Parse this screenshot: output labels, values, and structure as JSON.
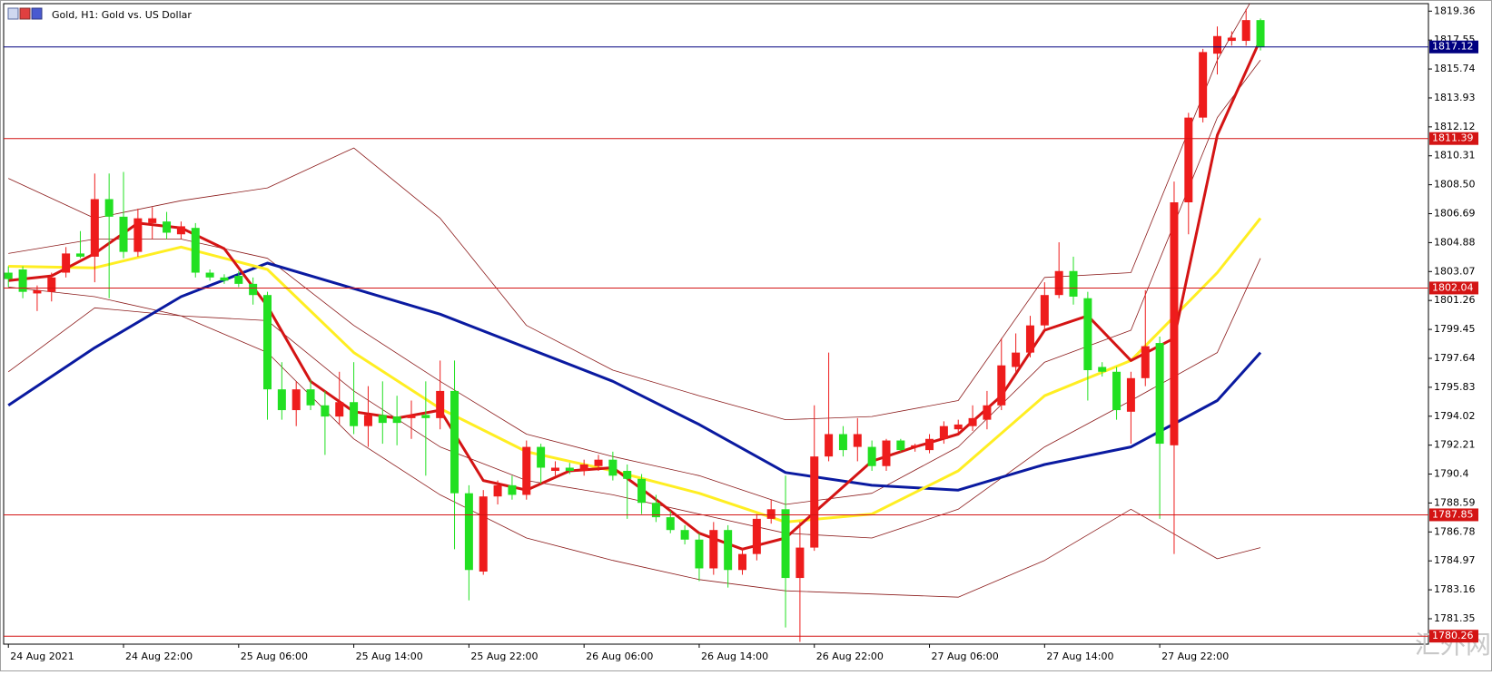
{
  "chart_data": {
    "type": "candlestick",
    "title": "Gold, H1:  Gold vs. US Dollar",
    "categories": [
      "24 Aug 2021",
      null,
      null,
      null,
      null,
      null,
      null,
      null,
      "24 Aug 22:00",
      null,
      null,
      null,
      null,
      null,
      null,
      null,
      "25 Aug 06:00",
      null,
      null,
      null,
      null,
      null,
      null,
      null,
      "25 Aug 14:00",
      null,
      null,
      null,
      null,
      null,
      null,
      null,
      "25 Aug 22:00",
      null,
      null,
      null,
      null,
      null,
      null,
      null,
      "26 Aug 06:00",
      null,
      null,
      null,
      null,
      null,
      null,
      null,
      "26 Aug 14:00",
      null,
      null,
      null,
      null,
      null,
      null,
      null,
      "26 Aug 22:00",
      null,
      null,
      null,
      null,
      null,
      null,
      null,
      "27 Aug 06:00",
      null,
      null,
      null,
      null,
      null,
      null,
      null,
      "27 Aug 14:00",
      null,
      null,
      null,
      null,
      null,
      null,
      null,
      "27 Aug 22:00",
      null,
      null,
      null,
      null,
      null,
      null,
      null
    ],
    "open": [
      1803.0,
      1803.2,
      1801.7,
      1801.8,
      1803.0,
      1804.2,
      1804.0,
      1807.6,
      1806.5,
      1804.3,
      1806.1,
      1806.2,
      1805.4,
      1805.8,
      1803.0,
      1802.7,
      1802.8,
      1802.3,
      1801.6,
      1795.7,
      1794.4,
      1795.7,
      1794.7,
      1794.0,
      1794.9,
      1793.4,
      1794.1,
      1794.0,
      1793.9,
      1794.1,
      1793.9,
      1795.6,
      1789.2,
      1784.3,
      1789.0,
      1789.7,
      1789.1,
      1792.1,
      1790.6,
      1790.8,
      1790.6,
      1790.9,
      1791.3,
      1790.6,
      1790.1,
      1788.6,
      1787.7,
      1786.9,
      1786.3,
      1784.5,
      1786.9,
      1784.4,
      1785.4,
      1787.6,
      1788.2,
      1783.9,
      1785.8,
      1791.5,
      1792.9,
      1792.1,
      1792.1,
      1790.9,
      1792.5,
      1792.1,
      1791.9,
      1792.6,
      1793.2,
      1793.4,
      1793.8,
      1794.7,
      1797.1,
      1798.0,
      1799.7,
      1801.6,
      1803.1,
      1801.4,
      1797.1,
      1796.8,
      1794.3,
      1796.4,
      1798.6,
      1792.2,
      1807.4,
      1812.7,
      1816.7,
      1817.5,
      1817.5,
      1818.8
    ],
    "high": [
      1803.4,
      1803.4,
      1802.2,
      1803.0,
      1804.6,
      1805.6,
      1809.2,
      1809.2,
      1809.3,
      1807.0,
      1807.1,
      1806.8,
      1806.2,
      1806.1,
      1803.2,
      1802.9,
      1803.1,
      1802.7,
      1801.8,
      1797.4,
      1796.2,
      1796.3,
      1795.6,
      1796.8,
      1797.4,
      1795.9,
      1796.2,
      1795.3,
      1795.0,
      1796.2,
      1797.5,
      1797.5,
      1789.7,
      1789.4,
      1790.0,
      1790.3,
      1792.5,
      1792.3,
      1791.2,
      1791.1,
      1791.3,
      1791.6,
      1791.8,
      1791.0,
      1790.4,
      1789.1,
      1788.1,
      1787.2,
      1786.7,
      1787.4,
      1787.2,
      1785.8,
      1787.9,
      1788.8,
      1790.3,
      1787.4,
      1794.7,
      1798.0,
      1793.4,
      1793.9,
      1792.5,
      1792.6,
      1792.6,
      1792.3,
      1792.9,
      1793.7,
      1793.8,
      1794.7,
      1795.6,
      1798.9,
      1799.2,
      1800.3,
      1802.4,
      1804.9,
      1804.0,
      1801.8,
      1797.4,
      1797.1,
      1796.8,
      1801.9,
      1799.0,
      1808.7,
      1813.0,
      1817.0,
      1818.4,
      1818.1,
      1819.5,
      1818.9
    ],
    "low": [
      1802.1,
      1801.4,
      1800.6,
      1801.2,
      1802.7,
      1803.9,
      1802.4,
      1801.4,
      1803.9,
      1804.0,
      1805.1,
      1805.1,
      1805.1,
      1802.7,
      1802.5,
      1802.3,
      1802.1,
      1801.0,
      1793.8,
      1793.8,
      1793.4,
      1794.4,
      1791.6,
      1793.5,
      1792.9,
      1792.1,
      1792.3,
      1792.2,
      1792.6,
      1790.3,
      1793.2,
      1785.7,
      1782.5,
      1784.1,
      1788.5,
      1788.8,
      1788.8,
      1789.8,
      1790.3,
      1790.4,
      1790.3,
      1790.6,
      1790.0,
      1787.6,
      1787.9,
      1787.4,
      1786.7,
      1786.0,
      1783.7,
      1784.1,
      1783.3,
      1784.1,
      1785.0,
      1787.3,
      1780.8,
      1779.9,
      1785.6,
      1791.2,
      1791.5,
      1791.2,
      1790.6,
      1790.6,
      1791.8,
      1791.8,
      1791.7,
      1792.3,
      1792.9,
      1793.1,
      1793.2,
      1794.4,
      1796.8,
      1797.7,
      1799.4,
      1801.4,
      1801.0,
      1795.0,
      1796.5,
      1793.8,
      1792.3,
      1795.9,
      1787.6,
      1785.4,
      1805.4,
      1812.4,
      1815.4,
      1817.2,
      1817.2,
      1816.9
    ],
    "close": [
      1802.6,
      1801.8,
      1801.9,
      1802.7,
      1804.2,
      1804.0,
      1807.6,
      1806.5,
      1804.3,
      1806.4,
      1806.4,
      1805.5,
      1805.9,
      1803.0,
      1802.7,
      1802.5,
      1802.3,
      1801.6,
      1795.7,
      1794.4,
      1795.7,
      1794.7,
      1794.0,
      1794.9,
      1793.4,
      1794.1,
      1793.6,
      1793.6,
      1794.1,
      1793.9,
      1795.6,
      1789.2,
      1784.4,
      1789.0,
      1789.7,
      1789.1,
      1792.1,
      1790.8,
      1790.8,
      1790.6,
      1791.0,
      1791.3,
      1790.3,
      1790.1,
      1788.6,
      1787.7,
      1786.9,
      1786.3,
      1784.5,
      1786.9,
      1784.4,
      1785.4,
      1787.6,
      1788.2,
      1783.9,
      1785.8,
      1791.5,
      1792.9,
      1791.9,
      1792.9,
      1790.9,
      1792.5,
      1791.9,
      1792.2,
      1792.6,
      1793.4,
      1793.5,
      1793.9,
      1794.7,
      1797.2,
      1798.0,
      1799.7,
      1801.6,
      1803.1,
      1801.5,
      1796.9,
      1796.8,
      1794.4,
      1796.4,
      1798.4,
      1792.3,
      1807.4,
      1812.7,
      1816.8,
      1817.8,
      1817.7,
      1818.8,
      1817.1
    ],
    "up_color": "#ee1c1c",
    "down_color": "#22e022",
    "lines": [
      {
        "color": "#8b1a1a",
        "width": 0.8,
        "x": [
          0,
          6,
          12,
          18,
          24,
          30,
          36,
          42,
          48,
          54,
          60,
          66,
          72,
          78,
          84,
          87
        ],
        "values": [
          1808.9,
          1806.4,
          1807.5,
          1808.3,
          1810.8,
          1806.4,
          1799.7,
          1796.9,
          1795.3,
          1793.8,
          1794.0,
          1795.0,
          1802.7,
          1803.0,
          1816.3,
          1821.0
        ]
      },
      {
        "color": "#8b1a1a",
        "width": 0.8,
        "x": [
          0,
          6,
          12,
          18,
          24,
          30,
          36,
          42,
          48,
          54,
          60,
          66,
          72,
          78,
          84,
          87
        ],
        "values": [
          1796.8,
          1800.8,
          1800.3,
          1798.0,
          1792.6,
          1789.1,
          1786.4,
          1785.0,
          1783.8,
          1783.1,
          1782.9,
          1782.7,
          1785.0,
          1788.2,
          1785.1,
          1785.8
        ]
      },
      {
        "color": "#8b1a1a",
        "width": 0.8,
        "x": [
          0,
          6,
          12,
          18,
          24,
          30,
          36,
          42,
          48,
          54,
          60,
          66,
          72,
          78,
          84,
          87
        ],
        "values": [
          1804.2,
          1805.1,
          1805.1,
          1803.9,
          1799.7,
          1796.2,
          1792.9,
          1791.5,
          1790.3,
          1788.5,
          1789.2,
          1792.1,
          1797.4,
          1799.4,
          1812.7,
          1816.3
        ]
      },
      {
        "color": "#8b1a1a",
        "width": 0.8,
        "x": [
          0,
          6,
          12,
          18,
          24,
          30,
          36,
          42,
          48,
          54,
          60,
          66,
          72,
          78,
          84,
          87
        ],
        "values": [
          1802.1,
          1801.5,
          1800.3,
          1800.0,
          1795.6,
          1792.1,
          1790.0,
          1789.1,
          1787.9,
          1786.7,
          1786.4,
          1788.2,
          1792.1,
          1795.0,
          1798.0,
          1803.9
        ]
      },
      {
        "color": "#0a1aa0",
        "width": 3,
        "x": [
          0,
          6,
          12,
          18,
          24,
          30,
          36,
          42,
          48,
          54,
          60,
          66,
          72,
          78,
          84,
          87
        ],
        "values": [
          1794.7,
          1798.3,
          1801.5,
          1803.6,
          1802.0,
          1800.4,
          1798.3,
          1796.2,
          1793.5,
          1790.5,
          1789.7,
          1789.4,
          1791.0,
          1792.1,
          1795.0,
          1798.0
        ]
      },
      {
        "color": "#ffee22",
        "width": 3,
        "x": [
          0,
          6,
          12,
          18,
          24,
          30,
          36,
          42,
          48,
          54,
          60,
          66,
          72,
          78,
          84,
          87
        ],
        "values": [
          1803.4,
          1803.3,
          1804.6,
          1803.2,
          1798.0,
          1794.5,
          1791.8,
          1790.6,
          1789.2,
          1787.4,
          1787.9,
          1790.6,
          1795.3,
          1797.5,
          1803.0,
          1806.4
        ]
      },
      {
        "color": "#d41414",
        "width": 3,
        "x": [
          0,
          3,
          6,
          9,
          12,
          15,
          18,
          21,
          24,
          27,
          30,
          33,
          36,
          39,
          42,
          45,
          48,
          51,
          54,
          57,
          60,
          63,
          66,
          69,
          72,
          75,
          78,
          81,
          84,
          87
        ],
        "values": [
          1802.5,
          1802.8,
          1804.2,
          1806.1,
          1805.8,
          1804.5,
          1800.9,
          1796.2,
          1794.3,
          1793.9,
          1794.4,
          1790.0,
          1789.4,
          1790.6,
          1790.8,
          1788.8,
          1786.7,
          1785.7,
          1786.4,
          1788.8,
          1791.2,
          1792.1,
          1792.9,
          1795.3,
          1799.4,
          1800.3,
          1797.5,
          1798.9,
          1811.6,
          1817.6
        ]
      }
    ],
    "levels": [
      {
        "value": 1817.12,
        "color": "#000080"
      },
      {
        "value": 1811.39,
        "color": "#d41414"
      },
      {
        "value": 1802.04,
        "color": "#d41414"
      },
      {
        "value": 1787.85,
        "color": "#d41414"
      },
      {
        "value": 1780.26,
        "color": "#d41414"
      }
    ],
    "ylim": [
      1779.76,
      1819.83
    ],
    "yticks": [
      1819.36,
      1817.55,
      1815.74,
      1813.93,
      1812.12,
      1810.31,
      {
        "value": 1808.5,
        "label": "1808.50"
      },
      1806.69,
      1804.88,
      1803.07,
      1801.26,
      1799.45,
      1797.64,
      1795.83,
      1794.02,
      1792.21,
      1790.4,
      1788.59,
      1786.78,
      1784.97,
      1783.16,
      1781.35
    ],
    "grid": false
  },
  "watermark": "汇外网"
}
